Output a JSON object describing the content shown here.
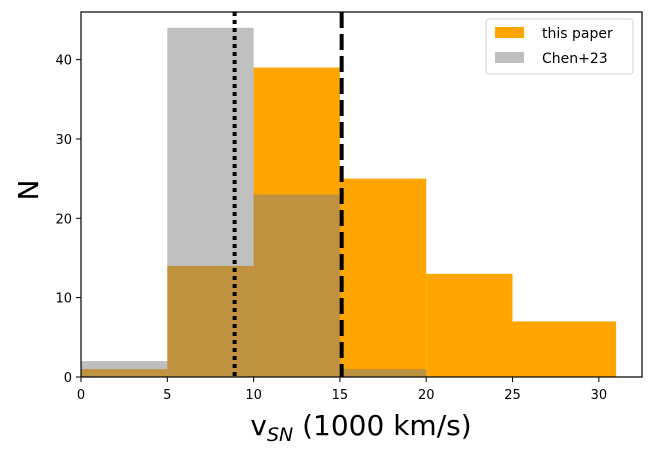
{
  "chart_data": {
    "type": "bar",
    "subtype": "histogram",
    "xlabel": "v",
    "xlabel_subscript": "SN",
    "xlabel_suffix": " (1000 km/s)",
    "ylabel": "N",
    "xlim": [
      0,
      32.5
    ],
    "ylim": [
      0,
      46
    ],
    "xticks": [
      "0",
      "5",
      "10",
      "15",
      "20",
      "25",
      "30"
    ],
    "yticks": [
      "0",
      "10",
      "20",
      "30",
      "40"
    ],
    "grid": false,
    "legend_position": "top-right",
    "series": [
      {
        "name": "this paper",
        "color": "#FFA500",
        "opacity": 1.0,
        "bins": [
          {
            "x0": 0,
            "x1": 5,
            "value": 1
          },
          {
            "x0": 5,
            "x1": 10,
            "value": 14
          },
          {
            "x0": 10,
            "x1": 15,
            "value": 39
          },
          {
            "x0": 15,
            "x1": 20,
            "value": 25
          },
          {
            "x0": 20,
            "x1": 25,
            "value": 13
          },
          {
            "x0": 25,
            "x1": 31,
            "value": 7
          }
        ]
      },
      {
        "name": "Chen+23",
        "color": "#808080",
        "opacity": 0.5,
        "bins": [
          {
            "x0": 0,
            "x1": 5,
            "value": 2
          },
          {
            "x0": 5,
            "x1": 10,
            "value": 44
          },
          {
            "x0": 10,
            "x1": 15,
            "value": 23
          },
          {
            "x0": 15,
            "x1": 20,
            "value": 1
          }
        ]
      }
    ],
    "vlines": [
      {
        "x": 8.9,
        "style": "dotted",
        "color": "#000000"
      },
      {
        "x": 15.1,
        "style": "dashed",
        "color": "#000000"
      }
    ]
  }
}
